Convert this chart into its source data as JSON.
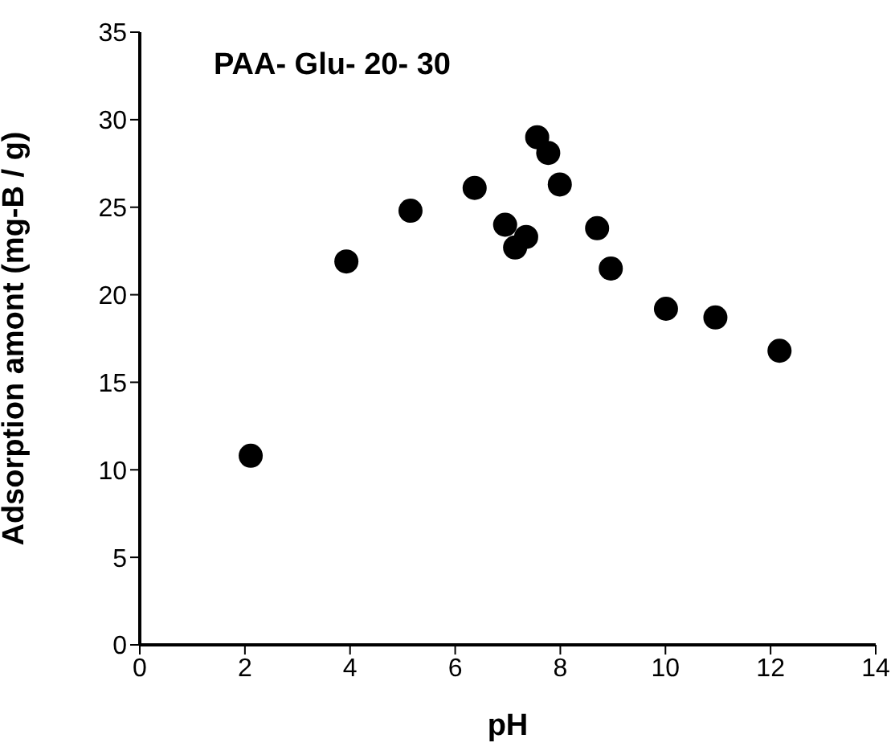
{
  "chart_data": {
    "type": "scatter",
    "title": "PAA- Glu- 20- 30",
    "xlabel": "pH",
    "ylabel": "Adsorption amont (mg-B / g)",
    "x": [
      2.11,
      3.93,
      5.15,
      6.37,
      6.95,
      7.14,
      7.35,
      7.56,
      7.77,
      7.99,
      8.7,
      8.96,
      10.01,
      10.95,
      12.17
    ],
    "series": [
      {
        "color": "#000000",
        "values": [
          10.8,
          21.9,
          24.8,
          26.1,
          24.0,
          22.7,
          23.3,
          29.0,
          28.1,
          26.3,
          23.8,
          21.5,
          19.2,
          18.7,
          16.8
        ]
      }
    ],
    "xlim": [
      0,
      14
    ],
    "xticks": [
      0,
      2,
      4,
      6,
      8,
      10,
      12,
      14
    ],
    "ylim": [
      0,
      35
    ],
    "yticks": [
      0,
      5,
      10,
      15,
      20,
      25,
      30,
      35
    ],
    "marker": "circle",
    "grid": false
  }
}
